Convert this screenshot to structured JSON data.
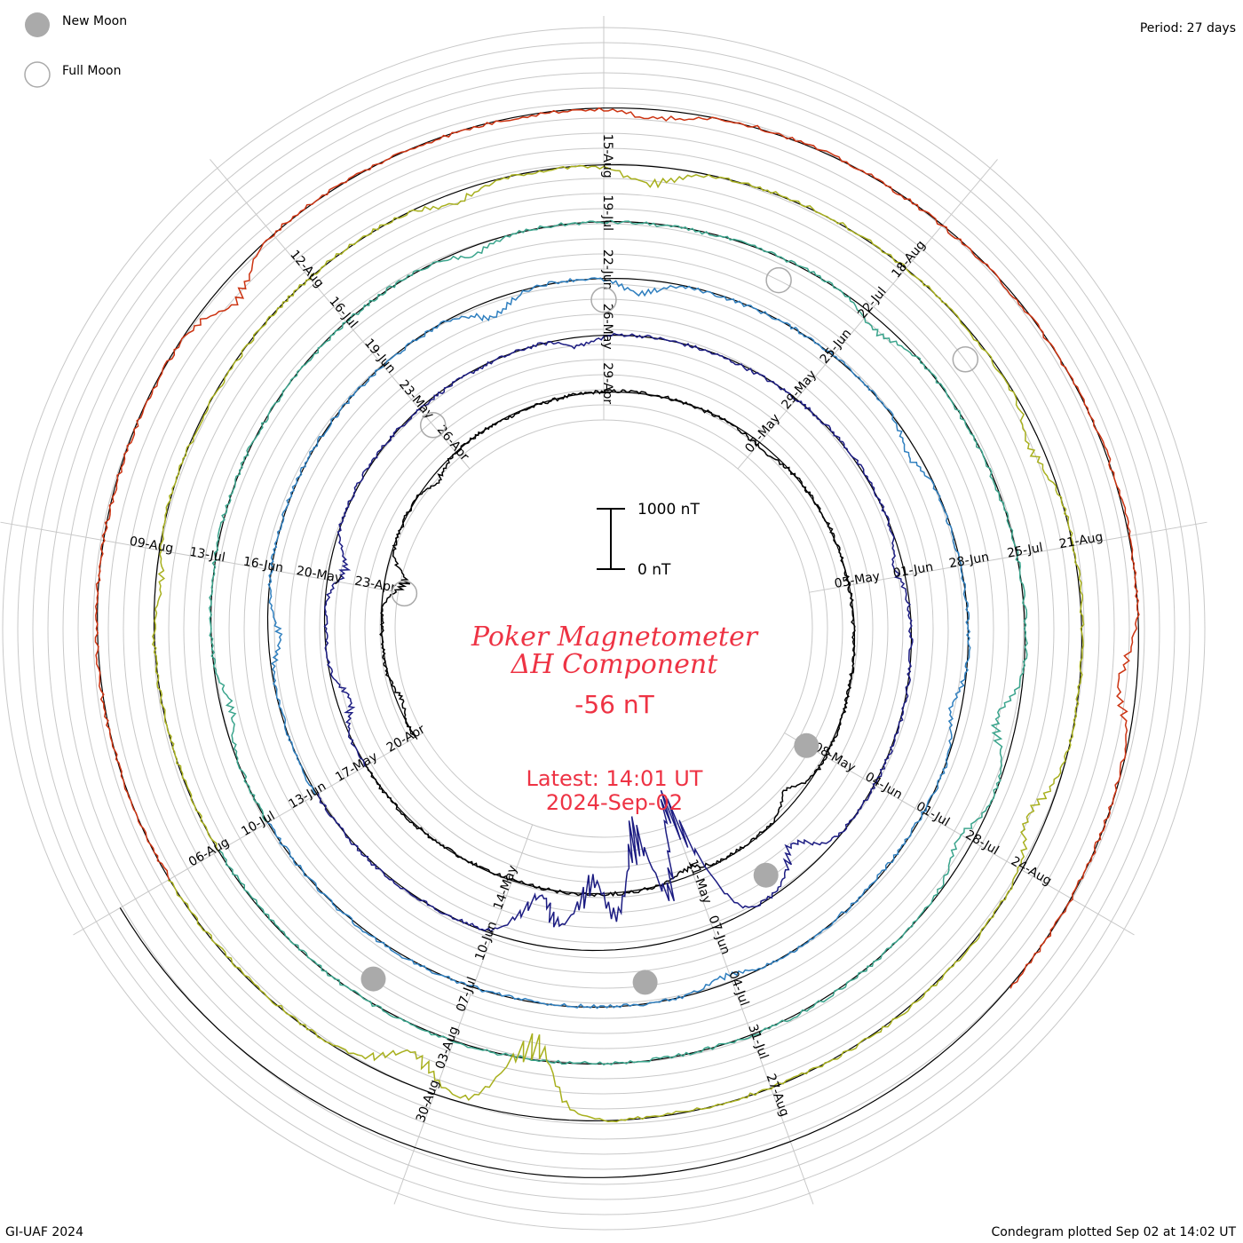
{
  "legend": {
    "new_moon_label": "New Moon",
    "full_moon_label": "Full Moon",
    "new_moon_icon": "filled-grey-circle-icon",
    "full_moon_icon": "hollow-grey-circle-icon"
  },
  "period_label": "Period: 27 days",
  "footer_left": "GI-UAF 2024",
  "footer_right": "Condegram plotted Sep 02 at 14:02 UT",
  "colors": {
    "title": "#ee3344",
    "grid": "#c8c8c8",
    "baseline": "#000000",
    "moon": "#aaaaaa"
  },
  "chart_data": {
    "type": "line",
    "layout": "spiral condegram",
    "title_line1": "Poker Magnetometer",
    "title_line2": "ΔH Component",
    "current_value": "-56 nT",
    "latest_label": "Latest: 14:01 UT",
    "latest_date": "2024-Sep-02",
    "scale_bar": {
      "top_label": "1000 nT",
      "bottom_label": "0 nT",
      "top_value_nT": 1000,
      "bottom_value_nT": 0
    },
    "period_days": 27,
    "series": [
      {
        "color": "#000000",
        "date_labels": [
          "20-Apr",
          "23-Apr",
          "26-Apr",
          "29-Apr",
          "02-May",
          "05-May",
          "08-May",
          "11-May",
          "14-May"
        ],
        "events": [
          [
            0.03,
            -120
          ],
          [
            0.12,
            -380
          ],
          [
            0.2,
            -160
          ],
          [
            0.45,
            -90
          ],
          [
            0.7,
            -260
          ],
          [
            0.78,
            -140
          ]
        ]
      },
      {
        "color": "#1c1c82",
        "date_labels": [
          "17-May",
          "20-May",
          "23-May",
          "26-May",
          "29-May",
          "01-Jun",
          "04-Jun",
          "07-Jun",
          "10-Jun"
        ],
        "events": [
          [
            0.04,
            -260
          ],
          [
            0.12,
            -300
          ],
          [
            0.32,
            -180
          ],
          [
            0.55,
            -150
          ],
          [
            0.72,
            -520
          ],
          [
            0.78,
            -2500
          ],
          [
            0.81,
            -2200
          ],
          [
            0.84,
            -1300
          ],
          [
            0.87,
            -900
          ]
        ]
      },
      {
        "color": "#2f7fbf",
        "date_labels": [
          "13-Jun",
          "16-Jun",
          "19-Jun",
          "22-Jun",
          "25-Jun",
          "28-Jun",
          "01-Jul",
          "04-Jul",
          "07-Jul"
        ],
        "events": [
          [
            0.08,
            -200
          ],
          [
            0.28,
            -320
          ],
          [
            0.35,
            -260
          ],
          [
            0.5,
            -180
          ],
          [
            0.62,
            -200
          ],
          [
            0.78,
            -150
          ]
        ]
      },
      {
        "color": "#3aa48c",
        "date_labels": [
          "10-Jul",
          "13-Jul",
          "16-Jul",
          "19-Jul",
          "22-Jul",
          "25-Jul",
          "28-Jul",
          "31-Jul",
          "03-Aug"
        ],
        "events": [
          [
            0.05,
            -180
          ],
          [
            0.28,
            -170
          ],
          [
            0.45,
            -220
          ],
          [
            0.62,
            -400
          ],
          [
            0.67,
            -250
          ]
        ]
      },
      {
        "color": "#a8b01e",
        "date_labels": [
          "06-Aug",
          "09-Aug",
          "12-Aug",
          "15-Aug",
          "18-Aug",
          "21-Aug",
          "24-Aug",
          "27-Aug",
          "30-Aug"
        ],
        "events": [
          [
            0.1,
            -120
          ],
          [
            0.28,
            -200
          ],
          [
            0.35,
            -320
          ],
          [
            0.52,
            -220
          ],
          [
            0.65,
            -320
          ],
          [
            0.86,
            -1400
          ],
          [
            0.9,
            -600
          ]
        ]
      },
      {
        "color": "#cc3311",
        "date_labels": [
          "",
          "",
          "",
          "",
          "",
          "",
          "",
          "",
          ""
        ],
        "events": [
          [
            0.2,
            -400
          ],
          [
            0.35,
            -180
          ],
          [
            0.6,
            -320
          ],
          [
            0.82,
            -500
          ],
          [
            0.88,
            -300
          ]
        ]
      }
    ],
    "new_moon_dates": [
      "08-May",
      "06-Jun",
      "05-Jul",
      "04-Aug"
    ],
    "full_moon_dates": [
      "23-Apr",
      "23-May",
      "22-Jun",
      "21-Jul",
      "19-Aug"
    ]
  }
}
